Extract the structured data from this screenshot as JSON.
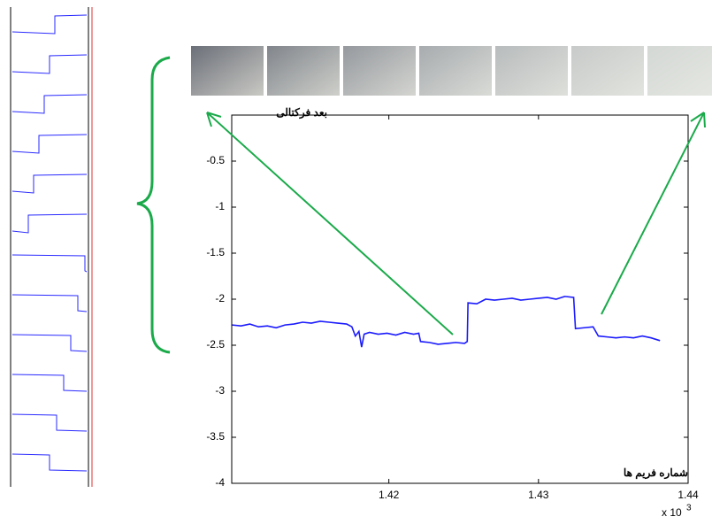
{
  "chart_data": {
    "type": "line",
    "y_label": "بعد فركتالی",
    "x_label": "شماره فریم ها",
    "x_multiplier": "x 10",
    "x_exponent": "3",
    "xlim": [
      1.4095,
      1.44
    ],
    "ylim": [
      -4,
      0
    ],
    "xticks": [
      1.42,
      1.43,
      1.44
    ],
    "yticks": [
      -4,
      -3.5,
      -3,
      -2.5,
      -2,
      -1.5,
      -1,
      -0.5
    ],
    "grid": false,
    "x": [
      1.40953,
      1.41012,
      1.41071,
      1.41129,
      1.41188,
      1.41247,
      1.41306,
      1.41365,
      1.41424,
      1.41482,
      1.41541,
      1.416,
      1.41659,
      1.41718,
      1.41753,
      1.41776,
      1.418,
      1.41818,
      1.41835,
      1.41871,
      1.41929,
      1.41988,
      1.42047,
      1.42106,
      1.42165,
      1.422,
      1.42212,
      1.42271,
      1.42329,
      1.42388,
      1.42447,
      1.42506,
      1.42524,
      1.42529,
      1.42588,
      1.42647,
      1.42706,
      1.42765,
      1.42824,
      1.42882,
      1.42941,
      1.43,
      1.43059,
      1.43118,
      1.43176,
      1.43235,
      1.43247,
      1.43306,
      1.43365,
      1.434,
      1.43459,
      1.43518,
      1.43576,
      1.43635,
      1.43694,
      1.43753,
      1.43812
    ],
    "series": [
      {
        "color": "#1a1aff",
        "values": [
          -2.28,
          -2.29,
          -2.27,
          -2.3,
          -2.29,
          -2.31,
          -2.28,
          -2.27,
          -2.25,
          -2.26,
          -2.24,
          -2.25,
          -2.26,
          -2.27,
          -2.3,
          -2.4,
          -2.35,
          -2.52,
          -2.38,
          -2.36,
          -2.38,
          -2.37,
          -2.39,
          -2.36,
          -2.38,
          -2.37,
          -2.46,
          -2.47,
          -2.49,
          -2.48,
          -2.47,
          -2.48,
          -2.46,
          -2.04,
          -2.05,
          -2.0,
          -2.01,
          -2.0,
          -1.99,
          -2.01,
          -2.0,
          -1.99,
          -1.98,
          -2.0,
          -1.97,
          -1.98,
          -2.32,
          -2.31,
          -2.3,
          -2.4,
          -2.41,
          -2.42,
          -2.41,
          -2.42,
          -2.4,
          -2.42,
          -2.45
        ]
      }
    ]
  }
}
